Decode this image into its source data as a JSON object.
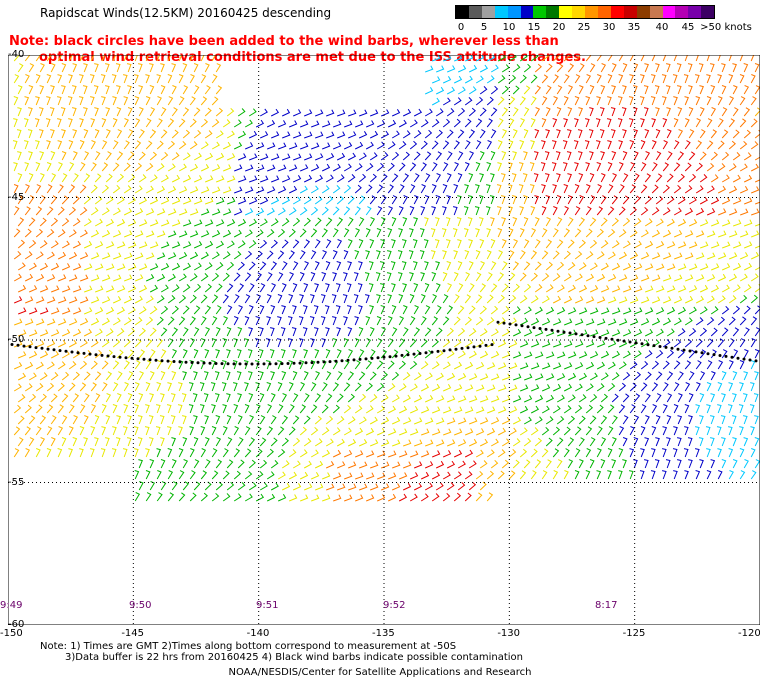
{
  "header": {
    "title": "Rapidscat Winds(12.5KM) 20160425 descending",
    "note_line1": "Note: black circles have been added to the wind barbs, wherever less than",
    "note_line2": "optimal wind retrieval conditions are met due to the ISS attitude changes."
  },
  "legend": {
    "unit": "knots",
    "labels": [
      "0",
      "5",
      "10",
      "15",
      "20",
      "25",
      "30",
      "35",
      "40",
      "45",
      ">50 knots"
    ],
    "colors": [
      "#000000",
      "#5a5a5a",
      "#a0a0a0",
      "#00c8ff",
      "#0096ff",
      "#0000c8",
      "#00c800",
      "#007800",
      "#ffff00",
      "#ffd700",
      "#ff9600",
      "#ff6400",
      "#ff0000",
      "#c80000",
      "#8c3c00",
      "#c87850",
      "#ff00ff",
      "#b400b4",
      "#7800aa",
      "#3c0064"
    ]
  },
  "map": {
    "lon_labels": [
      "-150",
      "-145",
      "-140",
      "-135",
      "-130",
      "-125",
      "-120"
    ],
    "lat_labels": [
      "-40",
      "-45",
      "-50",
      "-55",
      "-60"
    ],
    "time_labels": [
      "9:49",
      "9:50",
      "9:51",
      "9:52",
      "8:17"
    ],
    "lon_range": [
      -150,
      -120
    ],
    "lat_range": [
      -60,
      -40
    ]
  },
  "footer": {
    "line1": "Note: 1) Times are GMT 2)Times along bottom correspond to measurement at -50S",
    "line2": "3)Data buffer is 22 hrs from 20160425 4) Black wind barbs indicate possible contamination",
    "credit": "NOAA/NESDIS/Center for Satellite Applications and Research"
  }
}
